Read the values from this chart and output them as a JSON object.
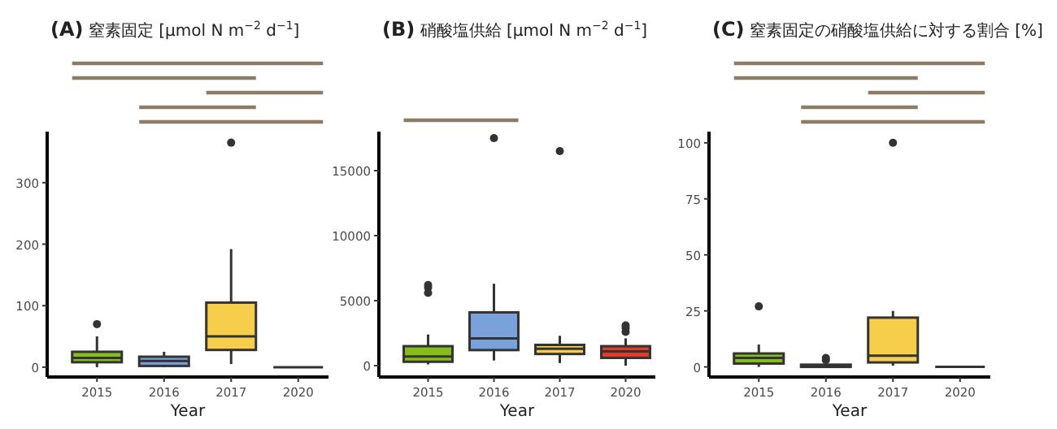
{
  "chart_data": [
    {
      "type": "box",
      "title": "(A) 窒素固定 [µmol N m$^{−2}$ d$^{−1}$]",
      "xlabel": "Year",
      "categories": [
        "2015",
        "2016",
        "2017",
        "2020"
      ],
      "colors": [
        "#86bc1c",
        "#7aa2da",
        "#f6ce4b",
        null
      ],
      "ylim": [
        -16,
        383
      ],
      "yticks": [
        0,
        100,
        200,
        300
      ],
      "boxes": [
        {
          "low": 0,
          "q1": 8,
          "median": 15,
          "q3": 25,
          "high": 50,
          "outliers": [
            70
          ]
        },
        {
          "low": 0,
          "q1": 2,
          "median": 10,
          "q3": 17,
          "high": 25
        },
        {
          "low": 5,
          "q1": 28,
          "median": 50,
          "q3": 105,
          "high": 192,
          "outliers": [
            365
          ]
        },
        {
          "low": 0,
          "q1": 0,
          "median": 0,
          "q3": 0,
          "high": 0
        }
      ]
    },
    {
      "type": "box",
      "title": "(B) 硝酸塩供給 [µmol N m$^{−2}$ d$^{−1}$]",
      "xlabel": "Year",
      "categories": [
        "2015",
        "2016",
        "2017",
        "2020"
      ],
      "colors": [
        "#86bc1c",
        "#7aa2da",
        "#f6ce4b",
        "#e23b2a"
      ],
      "ylim": [
        -870,
        18000
      ],
      "yticks": [
        0,
        5000,
        10000,
        15000
      ],
      "boxes": [
        {
          "low": 100,
          "q1": 300,
          "median": 700,
          "q3": 1500,
          "high": 2400,
          "outliers": [
            5600,
            6000,
            6200
          ]
        },
        {
          "low": 400,
          "q1": 1200,
          "median": 2100,
          "q3": 4100,
          "high": 6300,
          "outliers": [
            17500
          ]
        },
        {
          "low": 200,
          "q1": 900,
          "median": 1300,
          "q3": 1600,
          "high": 2300,
          "outliers": [
            16500
          ]
        },
        {
          "low": 0,
          "q1": 600,
          "median": 1100,
          "q3": 1500,
          "high": 2100,
          "outliers": [
            2600,
            2900,
            3100
          ]
        }
      ]
    },
    {
      "type": "box",
      "title": "(C) 窒素固定の硝酸塩供給に対する割合 [%]",
      "xlabel": "Year",
      "categories": [
        "2015",
        "2016",
        "2017",
        "2020"
      ],
      "colors": [
        "#86bc1c",
        "#7aa2da",
        "#f6ce4b",
        null
      ],
      "ylim": [
        -4.5,
        105
      ],
      "yticks": [
        0,
        25,
        50,
        75,
        100
      ],
      "boxes": [
        {
          "low": 0,
          "q1": 1.5,
          "median": 4,
          "q3": 6,
          "high": 10,
          "outliers": [
            27
          ]
        },
        {
          "low": 0,
          "q1": 0,
          "median": 0.3,
          "q3": 1,
          "high": 1,
          "outliers": [
            3,
            4
          ]
        },
        {
          "low": 0.5,
          "q1": 2,
          "median": 5,
          "q3": 22,
          "high": 25,
          "outliers": [
            100
          ]
        },
        {
          "low": 0,
          "q1": 0,
          "median": 0,
          "q3": 0,
          "high": 0
        }
      ]
    }
  ]
}
